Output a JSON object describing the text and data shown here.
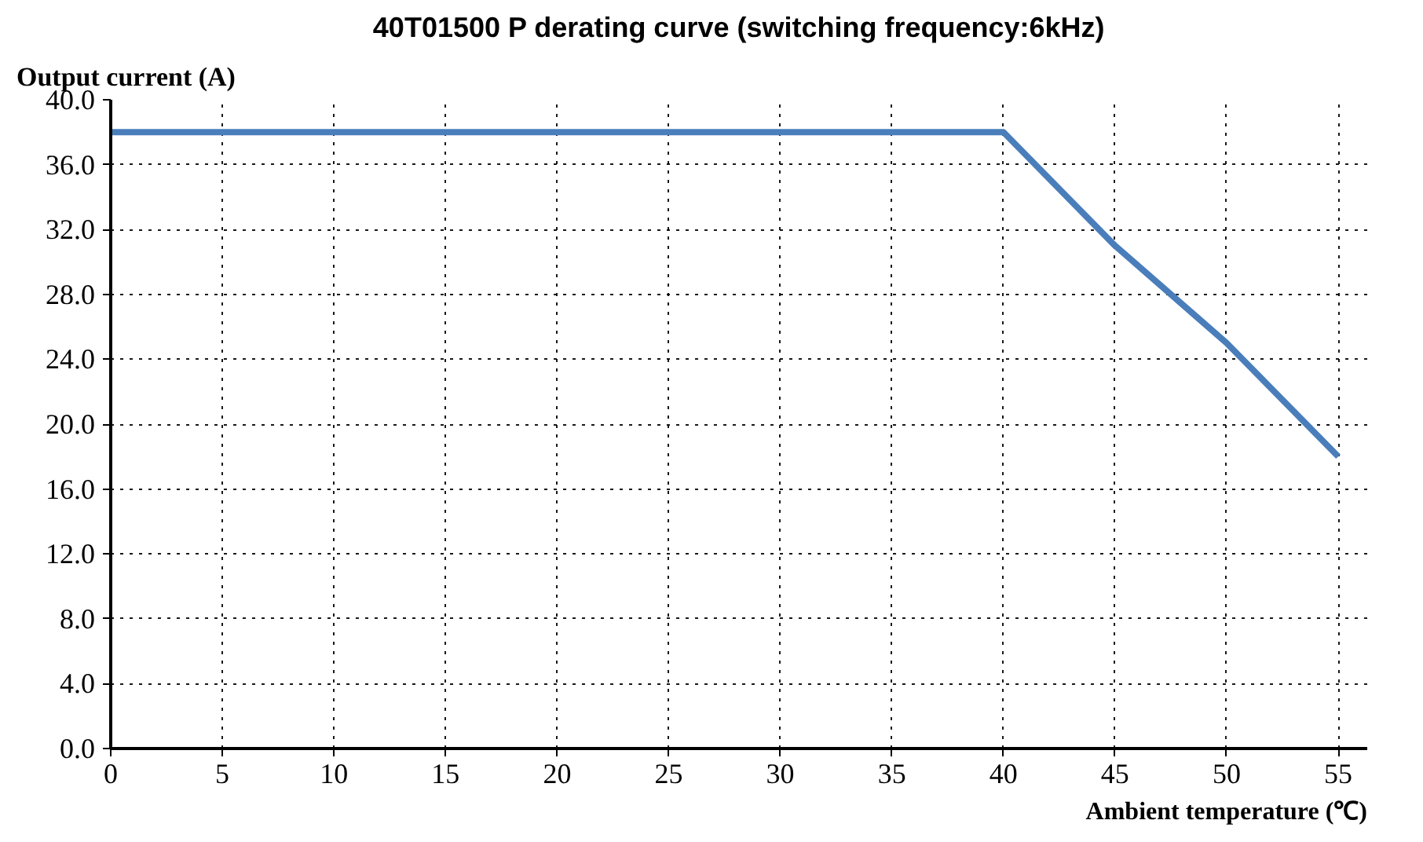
{
  "chart_data": {
    "type": "line",
    "title": "40T01500 P derating curve (switching frequency:6kHz)",
    "xlabel": "Ambient temperature (℃)",
    "ylabel": "Output current (A)",
    "x": [
      0,
      40,
      45,
      50,
      55
    ],
    "series": [
      {
        "color": "#4a7ebb",
        "values": [
          38,
          38,
          31,
          25,
          18
        ]
      }
    ],
    "xlim": [
      0,
      56.3
    ],
    "xticks": [
      0,
      5,
      10,
      15,
      20,
      25,
      30,
      35,
      40,
      45,
      50,
      55
    ],
    "ylim": [
      0,
      40
    ],
    "yticks": [
      {
        "value": 0,
        "label": "0.0"
      },
      {
        "value": 4,
        "label": "4.0"
      },
      {
        "value": 8,
        "label": "8.0"
      },
      {
        "value": 12,
        "label": "12.0"
      },
      {
        "value": 16,
        "label": "16.0"
      },
      {
        "value": 20,
        "label": "20.0"
      },
      {
        "value": 24,
        "label": "24.0"
      },
      {
        "value": 28,
        "label": "28.0"
      },
      {
        "value": 32,
        "label": "32.0"
      },
      {
        "value": 36,
        "label": "36.0"
      },
      {
        "value": 40,
        "label": "40.0"
      }
    ],
    "grid": true,
    "marker": "none",
    "line_style": "solid"
  }
}
